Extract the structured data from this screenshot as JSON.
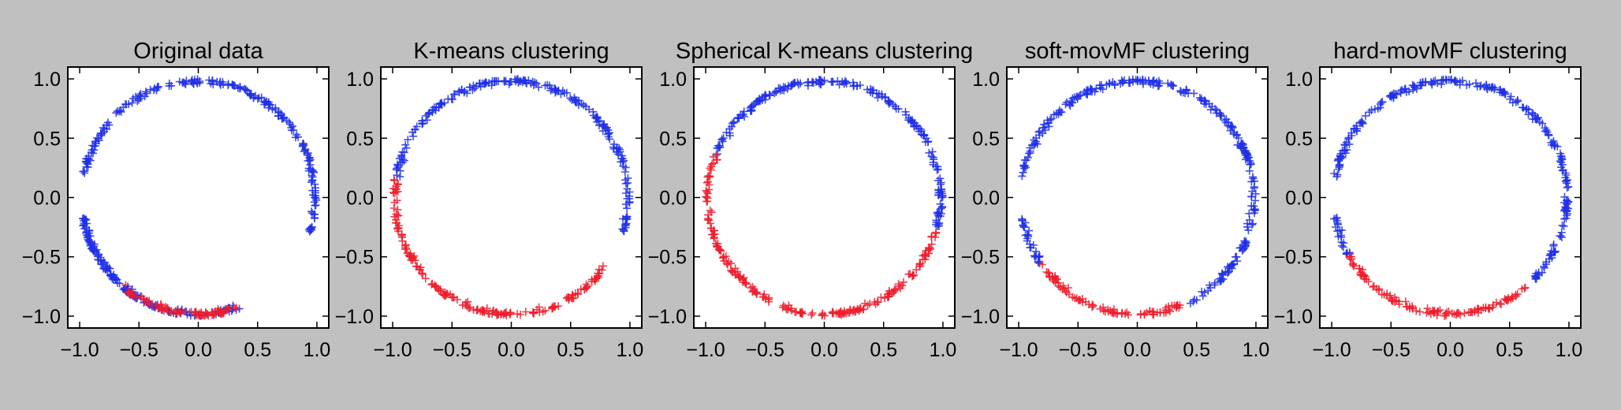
{
  "figure": {
    "background": "#c0c0c0",
    "plot_background": "#ffffff"
  },
  "chart_data": [
    {
      "type": "scatter",
      "title": "Original data",
      "xlabel": "",
      "ylabel": "",
      "xlim": [
        -1.1,
        1.1
      ],
      "ylim": [
        -1.1,
        1.1
      ],
      "xticks": [
        "−1.0",
        "−0.5",
        "0.0",
        "0.5",
        "1.0"
      ],
      "yticks": [
        "1.0",
        "0.5",
        "0.0",
        "−0.5",
        "−1.0"
      ],
      "grid": false,
      "marker": "+",
      "series": [
        {
          "color": "#1f2fe6",
          "arcs_deg": [
            [
              -170,
              -67
            ],
            [
              -17,
              170
            ],
            [
              190,
              240
            ]
          ]
        },
        {
          "color": "#ee1c2c",
          "arcs_deg": [
            [
              -130,
              -70
            ],
            [
              -93,
              -80
            ]
          ]
        }
      ]
    },
    {
      "type": "scatter",
      "title": "K-means clustering",
      "xlabel": "",
      "ylabel": "",
      "xlim": [
        -1.1,
        1.1
      ],
      "ylim": [
        -1.1,
        1.1
      ],
      "xticks": [
        "−1.0",
        "−0.5",
        "0.0",
        "0.5",
        "1.0"
      ],
      "yticks": [
        "1.0",
        "0.5",
        "0.0",
        "−0.5",
        "−1.0"
      ],
      "grid": false,
      "marker": "+",
      "series": [
        {
          "color": "#1f2fe6",
          "arcs_deg": [
            [
              -17,
              170
            ]
          ]
        },
        {
          "color": "#ee1c2c",
          "arcs_deg": [
            [
              170,
              240
            ],
            [
              240,
              305
            ],
            [
              -55,
              -36
            ]
          ]
        }
      ]
    },
    {
      "type": "scatter",
      "title": "Spherical K-means clustering",
      "xlabel": "",
      "ylabel": "",
      "xlim": [
        -1.1,
        1.1
      ],
      "ylim": [
        -1.1,
        1.1
      ],
      "xticks": [
        "−1.0",
        "−0.5",
        "0.0",
        "0.5",
        "1.0"
      ],
      "yticks": [
        "1.0",
        "0.5",
        "0.0",
        "−0.5",
        "−1.0"
      ],
      "grid": false,
      "marker": "+",
      "series": [
        {
          "color": "#1f2fe6",
          "arcs_deg": [
            [
              -17,
              158
            ]
          ]
        },
        {
          "color": "#ee1c2c",
          "arcs_deg": [
            [
              158,
              240
            ],
            [
              240,
              300
            ],
            [
              -60,
              -17
            ]
          ]
        }
      ]
    },
    {
      "type": "scatter",
      "title": "soft-movMF clustering",
      "xlabel": "",
      "ylabel": "",
      "xlim": [
        -1.1,
        1.1
      ],
      "ylim": [
        -1.1,
        1.1
      ],
      "xticks": [
        "−1.0",
        "−0.5",
        "0.0",
        "0.5",
        "1.0"
      ],
      "yticks": [
        "1.0",
        "0.5",
        "0.0",
        "−0.5",
        "−1.0"
      ],
      "grid": false,
      "marker": "+",
      "series": [
        {
          "color": "#1f2fe6",
          "arcs_deg": [
            [
              -65,
              170
            ],
            [
              190,
              215
            ]
          ]
        },
        {
          "color": "#ee1c2c",
          "arcs_deg": [
            [
              215,
              240
            ],
            [
              240,
              292
            ]
          ]
        }
      ]
    },
    {
      "type": "scatter",
      "title": "hard-movMF clustering",
      "xlabel": "",
      "ylabel": "",
      "xlim": [
        -1.1,
        1.1
      ],
      "ylim": [
        -1.1,
        1.1
      ],
      "xticks": [
        "−1.0",
        "−0.5",
        "0.0",
        "0.5",
        "1.0"
      ],
      "yticks": [
        "1.0",
        "0.5",
        "0.0",
        "−0.5",
        "−1.0"
      ],
      "grid": false,
      "marker": "+",
      "series": [
        {
          "color": "#1f2fe6",
          "arcs_deg": [
            [
              -45,
              170
            ],
            [
              190,
              210
            ]
          ]
        },
        {
          "color": "#ee1c2c",
          "arcs_deg": [
            [
              210,
              240
            ],
            [
              240,
              310
            ]
          ]
        }
      ]
    }
  ]
}
